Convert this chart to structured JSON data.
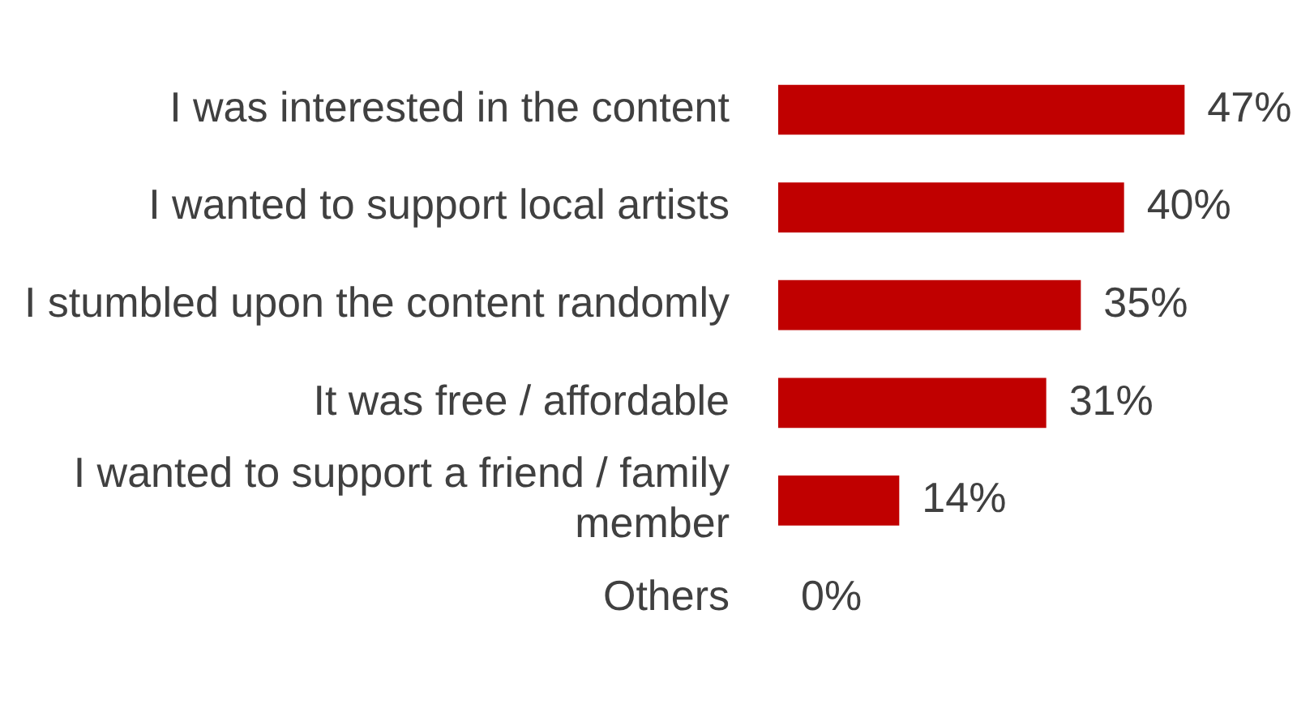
{
  "chart_data": {
    "type": "bar",
    "orientation": "horizontal",
    "categories": [
      "I was interested in the content",
      "I wanted to support local artists",
      "I stumbled upon the content randomly",
      "It was free / affordable",
      "I wanted to support a friend / family member",
      "Others"
    ],
    "values": [
      47,
      40,
      35,
      31,
      14,
      0
    ],
    "value_labels": [
      "47%",
      "40%",
      "35%",
      "31%",
      "14%",
      "0%"
    ],
    "color": "#c00000",
    "legend": false
  }
}
